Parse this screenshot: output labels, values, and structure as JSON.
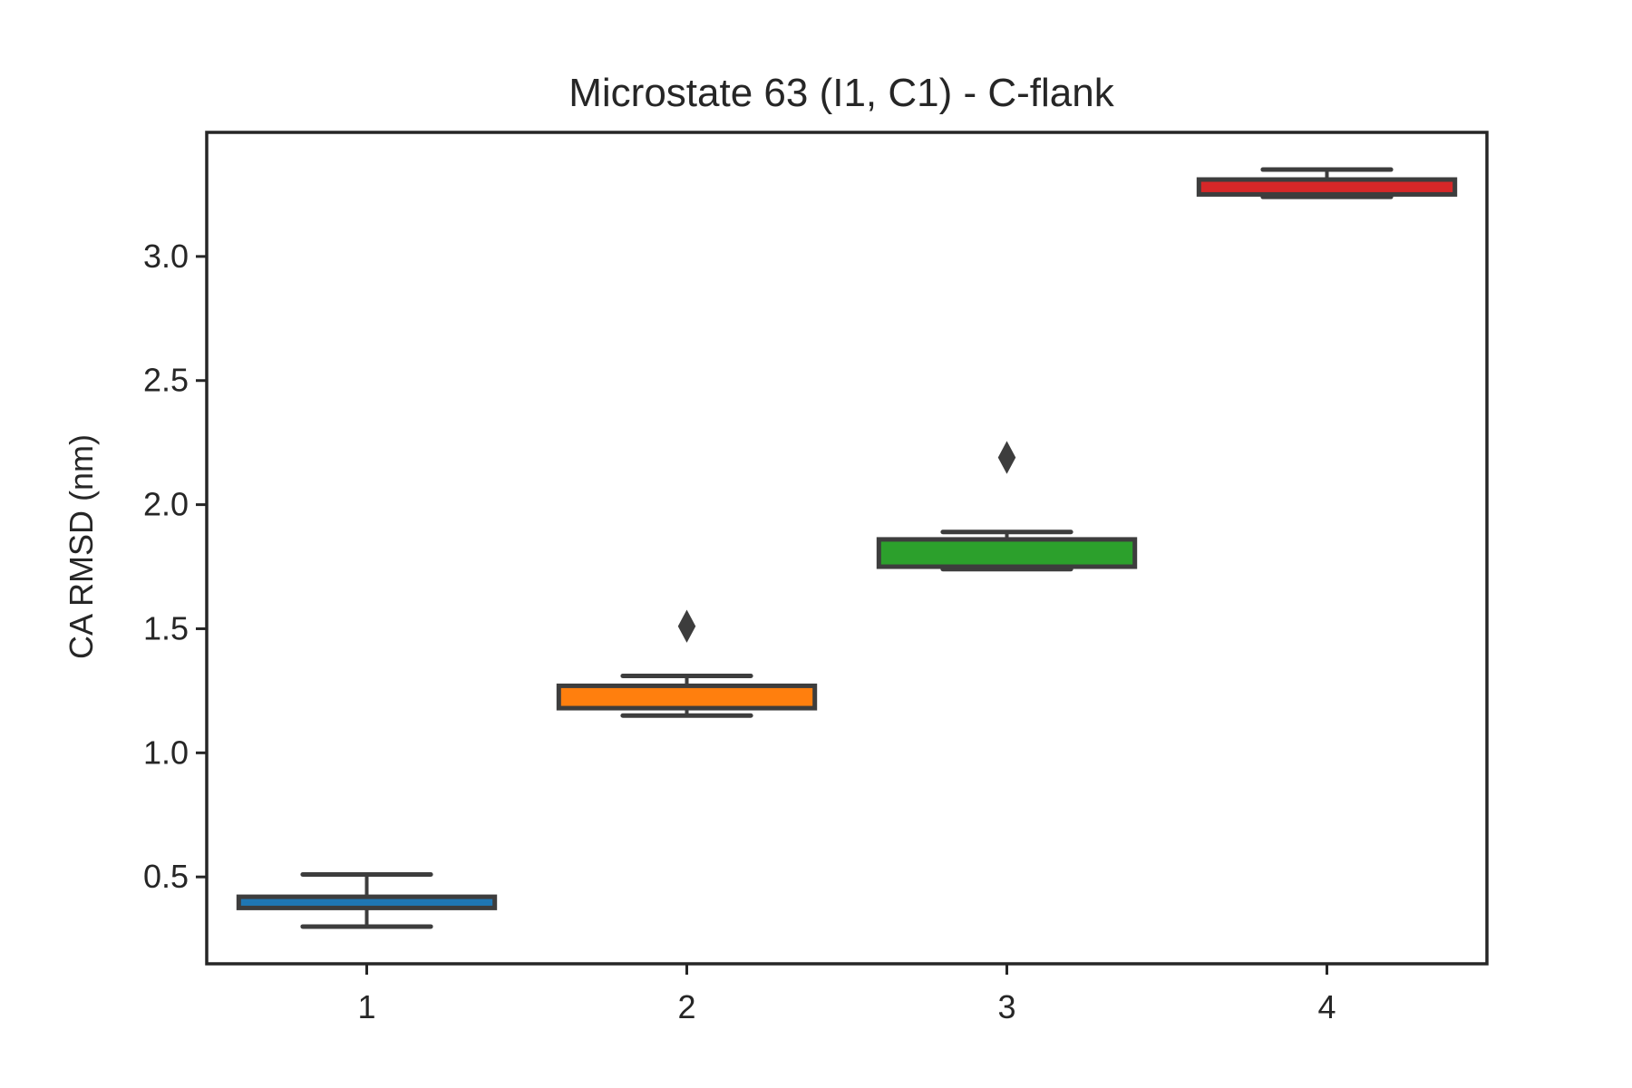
{
  "chart_data": {
    "type": "box",
    "title": "Microstate 63 (I1, C1) - C-flank",
    "xlabel": "",
    "ylabel": "CA RMSD (nm)",
    "ylim": [
      0.15,
      3.5
    ],
    "yticks": [
      "0.5",
      "1.0",
      "1.5",
      "2.0",
      "2.5",
      "3.0"
    ],
    "categories": [
      "1",
      "2",
      "3",
      "4"
    ],
    "grid": false,
    "legend": "none",
    "boxes": [
      {
        "category": "1",
        "color": "#1f77b4",
        "whisker_low": 0.3,
        "q1": 0.375,
        "median": 0.39,
        "q3": 0.42,
        "whisker_high": 0.51,
        "outliers": []
      },
      {
        "category": "2",
        "color": "#ff7f0e",
        "whisker_low": 1.15,
        "q1": 1.18,
        "median": 1.2,
        "q3": 1.27,
        "whisker_high": 1.31,
        "outliers": [
          1.51
        ]
      },
      {
        "category": "3",
        "color": "#2ca02c",
        "whisker_low": 1.74,
        "q1": 1.75,
        "median": 1.77,
        "q3": 1.86,
        "whisker_high": 1.89,
        "outliers": [
          2.19
        ]
      },
      {
        "category": "4",
        "color": "#d62728",
        "whisker_low": 3.24,
        "q1": 3.25,
        "median": 3.29,
        "q3": 3.31,
        "whisker_high": 3.35,
        "outliers": []
      }
    ]
  }
}
